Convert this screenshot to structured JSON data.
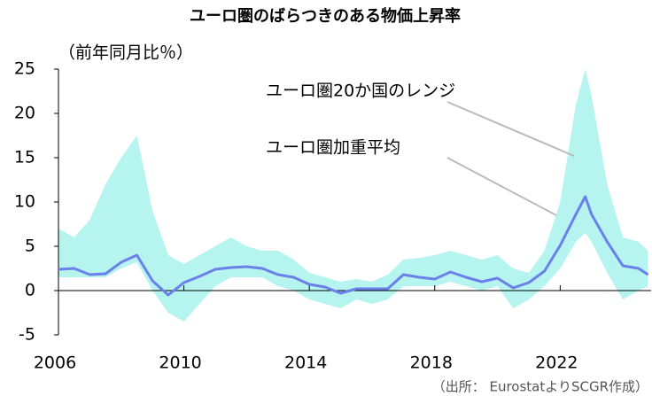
{
  "chart_data": {
    "type": "line",
    "title": "ユーロ圏のばらつきのある物価上昇率",
    "y_axis_label": "（前年同月比％）",
    "source": "（出所： EurostatよりSCGR作成）",
    "x": [
      2006.0,
      2006.5,
      2007.0,
      2007.5,
      2008.0,
      2008.5,
      2009.0,
      2009.5,
      2010.0,
      2010.5,
      2011.0,
      2011.5,
      2012.0,
      2012.5,
      2013.0,
      2013.5,
      2014.0,
      2014.5,
      2015.0,
      2015.5,
      2016.0,
      2016.5,
      2017.0,
      2017.5,
      2018.0,
      2018.5,
      2019.0,
      2019.5,
      2020.0,
      2020.5,
      2021.0,
      2021.5,
      2022.0,
      2022.5,
      2022.8,
      2023.0,
      2023.5,
      2024.0,
      2024.5,
      2024.8
    ],
    "band": {
      "name": "ユーロ圏20か国のレンジ",
      "color": "#b5f4ef",
      "max": [
        7,
        6,
        8,
        12,
        15,
        17.5,
        9,
        4,
        3,
        4,
        5,
        6,
        5,
        4.5,
        4.5,
        3.5,
        2,
        1.5,
        1,
        1.3,
        1,
        1.8,
        3.5,
        3.7,
        4,
        4.5,
        4,
        3.5,
        4,
        2.5,
        2,
        4.5,
        10,
        21,
        25,
        22,
        12,
        6,
        5.5,
        4.5
      ],
      "min": [
        1.5,
        1.5,
        1.5,
        1.5,
        2.5,
        3.2,
        0,
        -2.5,
        -3.5,
        -1.5,
        0.5,
        1.5,
        1.5,
        1.5,
        0.5,
        0,
        -1,
        -1.5,
        -2,
        -1,
        -1.5,
        -1,
        0.5,
        0.5,
        0.5,
        1,
        0.5,
        0,
        0.5,
        -2,
        -1,
        0.5,
        2.5,
        5.5,
        6.5,
        5.5,
        2,
        -1,
        0,
        0.5
      ]
    },
    "series": [
      {
        "name": "ユーロ圏加重平均",
        "color": "#6b80e8",
        "values": [
          2.4,
          2.5,
          1.8,
          1.9,
          3.2,
          4.0,
          1.1,
          -0.5,
          0.9,
          1.6,
          2.4,
          2.6,
          2.7,
          2.5,
          1.8,
          1.5,
          0.7,
          0.4,
          -0.3,
          0.2,
          0.2,
          0.2,
          1.8,
          1.5,
          1.3,
          2.1,
          1.5,
          1.0,
          1.4,
          0.3,
          0.9,
          2.2,
          5.1,
          8.6,
          10.6,
          8.6,
          5.5,
          2.8,
          2.5,
          1.8
        ]
      }
    ],
    "xlim": [
      2006,
      2024.9
    ],
    "xticks": [
      2006,
      2010,
      2014,
      2018,
      2022
    ],
    "ylim": [
      -5,
      25
    ],
    "yticks": [
      -5,
      0,
      5,
      10,
      15,
      20,
      25
    ]
  }
}
